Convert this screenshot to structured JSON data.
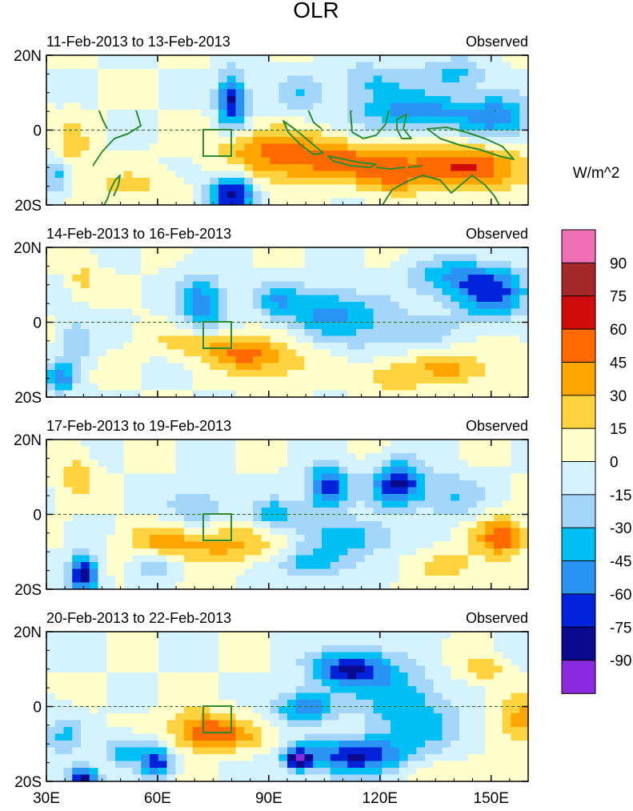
{
  "chart_data": {
    "type": "heatmap",
    "title": "OLR",
    "units": "W/m^2",
    "colorbar": {
      "boundaries": [
        -90,
        -75,
        -60,
        -45,
        -30,
        -15,
        0,
        15,
        30,
        45,
        60,
        75,
        90
      ],
      "labels": [
        "90",
        "75",
        "60",
        "45",
        "30",
        "15",
        "0",
        "-15",
        "-30",
        "-45",
        "-60",
        "-75",
        "-90"
      ],
      "colors": [
        "#f06fb6",
        "#a5292b",
        "#d00b0b",
        "#ff6a00",
        "#ffa500",
        "#ffd33f",
        "#ffffcc",
        "#d5f3ff",
        "#a4d6fb",
        "#00bff5",
        "#2a94f5",
        "#0022d8",
        "#0a0a8e",
        "#8a2be2"
      ]
    },
    "x_ticks": [
      "30E",
      "60E",
      "90E",
      "120E",
      "150E"
    ],
    "x_tick_values": [
      30,
      60,
      90,
      120,
      150
    ],
    "xlim": [
      30,
      160
    ],
    "y_ticks": [
      "20N",
      "0",
      "20S"
    ],
    "y_tick_values": [
      20,
      0,
      -20
    ],
    "ylim": [
      -20,
      20
    ],
    "box_region": {
      "lon": [
        72,
        80
      ],
      "lat": [
        -7,
        7
      ]
    },
    "panels": [
      {
        "period": "11-Feb-2013 to 13-Feb-2013",
        "label": "Observed",
        "blobs": [
          {
            "lon": 145,
            "lat": -10,
            "v": 55,
            "rx": 16,
            "ry": 6
          },
          {
            "lon": 115,
            "lat": -8,
            "v": 40,
            "rx": 20,
            "ry": 5
          },
          {
            "lon": 90,
            "lat": -4,
            "v": 35,
            "rx": 14,
            "ry": 5
          },
          {
            "lon": 96,
            "lat": -10,
            "v": 25,
            "rx": 16,
            "ry": 6
          },
          {
            "lon": 123,
            "lat": -13,
            "v": 35,
            "rx": 9,
            "ry": 4
          },
          {
            "lon": 37,
            "lat": -5,
            "v": 25,
            "rx": 5,
            "ry": 7
          },
          {
            "lon": 52,
            "lat": -15,
            "v": 20,
            "rx": 12,
            "ry": 4
          },
          {
            "lon": 80,
            "lat": 8,
            "v": -80,
            "rx": 4,
            "ry": 7
          },
          {
            "lon": 80,
            "lat": -17,
            "v": -85,
            "rx": 6,
            "ry": 5
          },
          {
            "lon": 130,
            "lat": 5,
            "v": -55,
            "rx": 16,
            "ry": 5
          },
          {
            "lon": 152,
            "lat": 3,
            "v": -50,
            "rx": 9,
            "ry": 6
          },
          {
            "lon": 118,
            "lat": 13,
            "v": -30,
            "rx": 10,
            "ry": 5
          },
          {
            "lon": 98,
            "lat": 10,
            "v": -25,
            "rx": 7,
            "ry": 6
          },
          {
            "lon": 33,
            "lat": -12,
            "v": -35,
            "rx": 4,
            "ry": 5
          },
          {
            "lon": 140,
            "lat": 15,
            "v": -35,
            "rx": 9,
            "ry": 4
          }
        ]
      },
      {
        "period": "14-Feb-2013 to 16-Feb-2013",
        "label": "Observed",
        "blobs": [
          {
            "lon": 150,
            "lat": 8,
            "v": -65,
            "rx": 10,
            "ry": 7
          },
          {
            "lon": 138,
            "lat": 12,
            "v": -40,
            "rx": 10,
            "ry": 5
          },
          {
            "lon": 72,
            "lat": 5,
            "v": -60,
            "rx": 6,
            "ry": 7
          },
          {
            "lon": 104,
            "lat": 3,
            "v": -40,
            "rx": 10,
            "ry": 6
          },
          {
            "lon": 92,
            "lat": 6,
            "v": -35,
            "rx": 6,
            "ry": 5
          },
          {
            "lon": 115,
            "lat": 0,
            "v": -25,
            "rx": 12,
            "ry": 8
          },
          {
            "lon": 130,
            "lat": -3,
            "v": -25,
            "rx": 10,
            "ry": 5
          },
          {
            "lon": 34,
            "lat": -15,
            "v": -50,
            "rx": 4,
            "ry": 4
          },
          {
            "lon": 38,
            "lat": -5,
            "v": -30,
            "rx": 4,
            "ry": 7
          },
          {
            "lon": 82,
            "lat": -8,
            "v": 40,
            "rx": 10,
            "ry": 4
          },
          {
            "lon": 92,
            "lat": -11,
            "v": 25,
            "rx": 12,
            "ry": 5
          },
          {
            "lon": 70,
            "lat": -5,
            "v": 20,
            "rx": 12,
            "ry": 4
          },
          {
            "lon": 138,
            "lat": -12,
            "v": 30,
            "rx": 14,
            "ry": 5
          },
          {
            "lon": 123,
            "lat": -15,
            "v": 25,
            "rx": 7,
            "ry": 4
          },
          {
            "lon": 40,
            "lat": 12,
            "v": 20,
            "rx": 4,
            "ry": 5
          }
        ]
      },
      {
        "period": "17-Feb-2013 to 19-Feb-2013",
        "label": "Observed",
        "blobs": [
          {
            "lon": 125,
            "lat": 8,
            "v": -80,
            "rx": 7,
            "ry": 6
          },
          {
            "lon": 106,
            "lat": 7,
            "v": -70,
            "rx": 6,
            "ry": 6
          },
          {
            "lon": 92,
            "lat": 0,
            "v": -45,
            "rx": 6,
            "ry": 4
          },
          {
            "lon": 112,
            "lat": -6,
            "v": -40,
            "rx": 12,
            "ry": 5
          },
          {
            "lon": 102,
            "lat": -13,
            "v": -40,
            "rx": 9,
            "ry": 4
          },
          {
            "lon": 40,
            "lat": -16,
            "v": -85,
            "rx": 4,
            "ry": 5
          },
          {
            "lon": 140,
            "lat": 5,
            "v": -30,
            "rx": 8,
            "ry": 6
          },
          {
            "lon": 70,
            "lat": 2,
            "v": -30,
            "rx": 8,
            "ry": 5
          },
          {
            "lon": 60,
            "lat": -14,
            "v": -30,
            "rx": 5,
            "ry": 3
          },
          {
            "lon": 153,
            "lat": -6,
            "v": 55,
            "rx": 7,
            "ry": 5
          },
          {
            "lon": 77,
            "lat": -8,
            "v": 35,
            "rx": 14,
            "ry": 5
          },
          {
            "lon": 60,
            "lat": -7,
            "v": 25,
            "rx": 9,
            "ry": 4
          },
          {
            "lon": 38,
            "lat": 10,
            "v": 25,
            "rx": 5,
            "ry": 6
          },
          {
            "lon": 140,
            "lat": -14,
            "v": 20,
            "rx": 10,
            "ry": 5
          }
        ]
      },
      {
        "period": "20-Feb-2013 to 22-Feb-2013",
        "label": "Observed",
        "blobs": [
          {
            "lon": 114,
            "lat": -13,
            "v": -75,
            "rx": 14,
            "ry": 5
          },
          {
            "lon": 98,
            "lat": -14,
            "v": -85,
            "rx": 4,
            "ry": 3
          },
          {
            "lon": 112,
            "lat": 10,
            "v": -80,
            "rx": 10,
            "ry": 5
          },
          {
            "lon": 100,
            "lat": 0,
            "v": -60,
            "rx": 8,
            "ry": 4
          },
          {
            "lon": 125,
            "lat": 2,
            "v": -45,
            "rx": 10,
            "ry": 8
          },
          {
            "lon": 135,
            "lat": -6,
            "v": -30,
            "rx": 10,
            "ry": 6
          },
          {
            "lon": 40,
            "lat": -19,
            "v": -85,
            "rx": 4,
            "ry": 3
          },
          {
            "lon": 60,
            "lat": -15,
            "v": -70,
            "rx": 4,
            "ry": 4
          },
          {
            "lon": 52,
            "lat": -12,
            "v": -40,
            "rx": 6,
            "ry": 4
          },
          {
            "lon": 35,
            "lat": -8,
            "v": -30,
            "rx": 5,
            "ry": 6
          },
          {
            "lon": 72,
            "lat": -6,
            "v": 45,
            "rx": 9,
            "ry": 5
          },
          {
            "lon": 80,
            "lat": -8,
            "v": 25,
            "rx": 12,
            "ry": 4
          },
          {
            "lon": 158,
            "lat": -4,
            "v": 40,
            "rx": 6,
            "ry": 6
          },
          {
            "lon": 148,
            "lat": 10,
            "v": 25,
            "rx": 6,
            "ry": 3
          },
          {
            "lon": 140,
            "lat": -18,
            "v": 20,
            "rx": 10,
            "ry": 4
          }
        ]
      }
    ]
  }
}
